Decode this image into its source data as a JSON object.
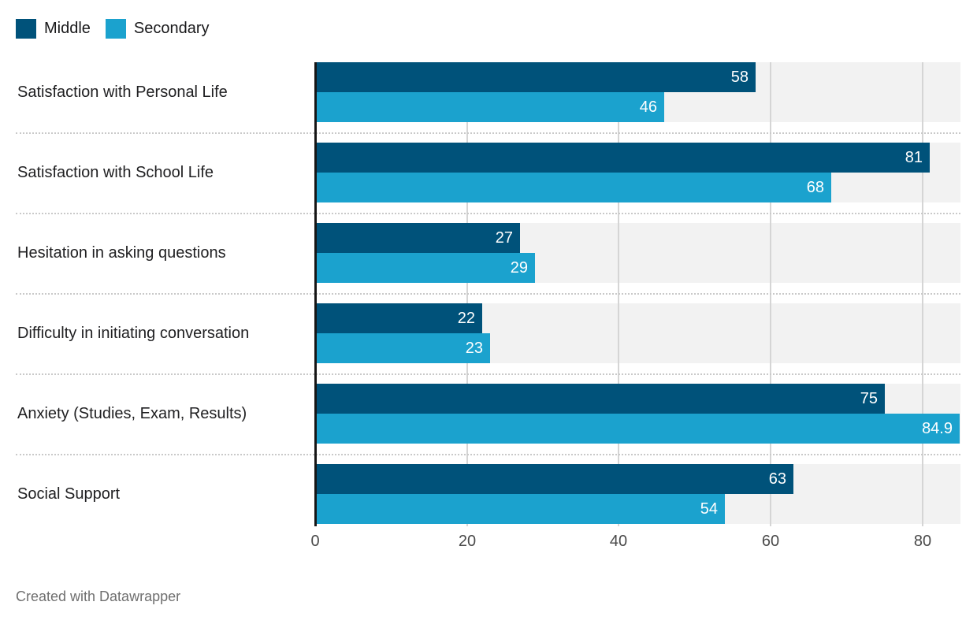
{
  "legend": {
    "position": "top-left",
    "items": [
      {
        "label": "Middle",
        "color": "#00527a"
      },
      {
        "label": "Secondary",
        "color": "#1ba2ce"
      }
    ]
  },
  "chart_data": {
    "type": "bar",
    "orientation": "horizontal",
    "title": "",
    "xlabel": "",
    "ylabel": "",
    "categories": [
      "Satisfaction with Personal Life",
      "Satisfaction with School Life",
      "Hesitation in asking questions",
      "Difficulty in initiating conversation",
      "Anxiety (Studies, Exam, Results)",
      "Social Support"
    ],
    "series": [
      {
        "name": "Middle",
        "color": "#00527a",
        "values": [
          58,
          81,
          27,
          22,
          75,
          63
        ]
      },
      {
        "name": "Secondary",
        "color": "#1ba2ce",
        "values": [
          46,
          68,
          29,
          23,
          84.9,
          54
        ]
      }
    ],
    "xlim": [
      0,
      85
    ],
    "x_ticks": [
      0,
      20,
      40,
      60,
      80
    ],
    "grid": true,
    "row_band_color": "#f2f2f2",
    "gridline_color": "#d5d5d5",
    "value_label_color": "#ffffff",
    "legend_position": "top-left"
  },
  "footer": {
    "credit": "Created with Datawrapper"
  }
}
